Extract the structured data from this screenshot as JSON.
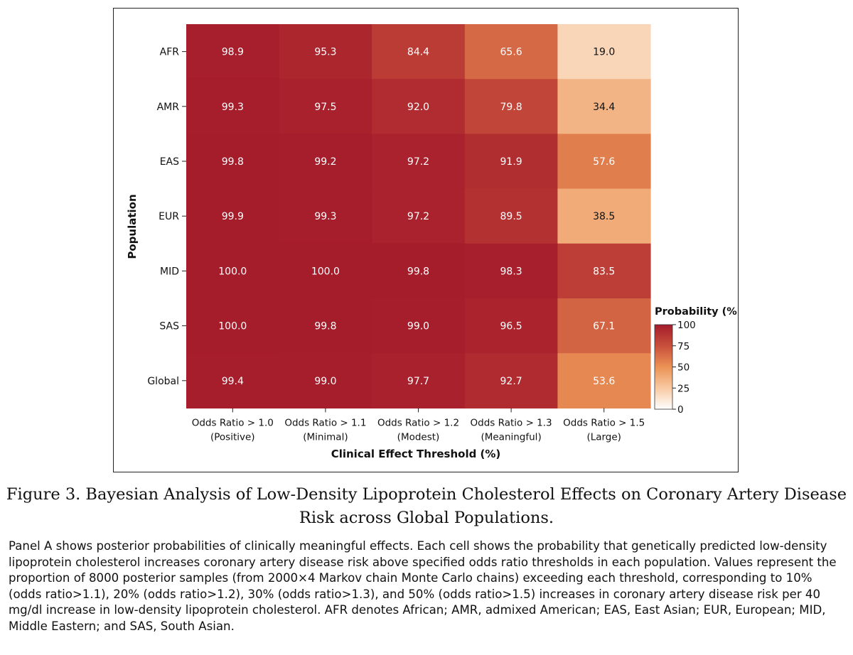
{
  "chart_data": {
    "type": "heatmap",
    "title": "",
    "xlabel": "Clinical Effect Threshold (%)",
    "ylabel": "Population",
    "columns": [
      {
        "line1": "Odds Ratio > 1.0",
        "line2": "(Positive)"
      },
      {
        "line1": "Odds Ratio > 1.1",
        "line2": "(Minimal)"
      },
      {
        "line1": "Odds Ratio > 1.2",
        "line2": "(Modest)"
      },
      {
        "line1": "Odds Ratio > 1.3",
        "line2": "(Meaningful)"
      },
      {
        "line1": "Odds Ratio > 1.5",
        "line2": "(Large)"
      }
    ],
    "rows": [
      "AFR",
      "AMR",
      "EAS",
      "EUR",
      "MID",
      "SAS",
      "Global"
    ],
    "values": [
      [
        98.9,
        95.3,
        84.4,
        65.6,
        19.0
      ],
      [
        99.3,
        97.5,
        92.0,
        79.8,
        34.4
      ],
      [
        99.8,
        99.2,
        97.2,
        91.9,
        57.6
      ],
      [
        99.9,
        99.3,
        97.2,
        89.5,
        38.5
      ],
      [
        100.0,
        100.0,
        99.8,
        98.3,
        83.5
      ],
      [
        100.0,
        99.8,
        99.0,
        96.5,
        67.1
      ],
      [
        99.4,
        99.0,
        97.7,
        92.7,
        53.6
      ]
    ],
    "colorbar": {
      "title": "Probability (%)",
      "range": [
        0,
        100
      ],
      "ticks": [
        0,
        25,
        50,
        75,
        100
      ],
      "colors": [
        "#ffffff",
        "#f8c9a2",
        "#eb9255",
        "#c84f3b",
        "#a51c2b"
      ]
    }
  },
  "caption": {
    "title": "Figure 3.  Bayesian Analysis of Low-Density Lipoprotein Cholesterol Effects on Coronary Artery Disease Risk across Global Populations.",
    "body": "Panel A shows posterior probabilities of clinically meaningful effects. Each cell shows the probability that genetically predicted low-density lipoprotein cholesterol increases coronary artery disease risk above specified odds ratio thresholds in each population. Values represent the proportion of 8000 posterior samples (from 2000×4 Markov chain Monte Carlo chains) exceeding each threshold, corresponding to 10% (odds ratio>1.1), 20% (odds ratio>1.2), 30% (odds ratio>1.3), and 50% (odds ratio>1.5) increases in coronary artery disease risk per 40 mg/dl increase in low-density lipoprotein cholesterol. AFR denotes African; AMR, admixed American; EAS, East Asian; EUR, European; MID, Middle Eastern; and SAS, South Asian."
  }
}
